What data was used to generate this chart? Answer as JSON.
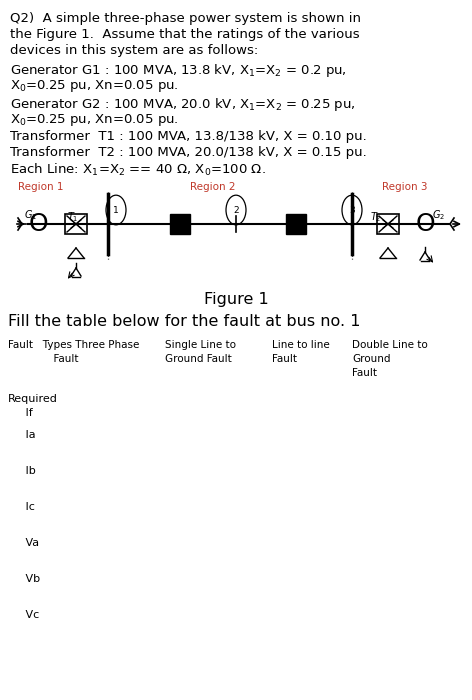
{
  "bg_color": "#ffffff",
  "text_color": "#000000",
  "region_color": "#c0392b",
  "q2_line1": "Q2)  A simple three-phase power system is shown in",
  "q2_line2": "the Figure 1.  Assume that the ratings of the various",
  "q2_line3": "devices in this system are as follows:",
  "g1_line1": "Generator G1 : 100 MVA, 13.8 kV, X$_1$=X$_2$ = 0.2 pu,",
  "g1_line2": "X$_0$=0.25 pu, Xn=0.05 pu.",
  "g2_line1": "Generator G2 : 100 MVA, 20.0 kV, X$_1$=X$_2$ = 0.25 pu,",
  "g2_line2": "X$_0$=0.25 pu, Xn=0.05 pu.",
  "t1_line": "Transformer  T1 : 100 MVA, 13.8/138 kV, X = 0.10 pu.",
  "t2_line": "Transformer  T2 : 100 MVA, 20.0/138 kV, X = 0.15 pu.",
  "line_line": "Each Line: X$_1$=X$_2$ == 40 $\\Omega$, X$_0$=100 $\\Omega$.",
  "region1": "Region 1",
  "region2": "Region 2",
  "region3": "Region 3",
  "figure_label": "Figure 1",
  "fill_table": "Fill the table below for the fault at bus no. 1",
  "col1": "Fault   Types Three Phase\n              Fault",
  "col2": "Single Line to\nGround Fault",
  "col3": "Line to line\nFault",
  "col4": "Double Line to\nGround\nFault",
  "rows": [
    "Required\n     If",
    "     Ia",
    "     Ib",
    "     Ic",
    "     Va",
    "     Vb",
    "     Vc"
  ]
}
